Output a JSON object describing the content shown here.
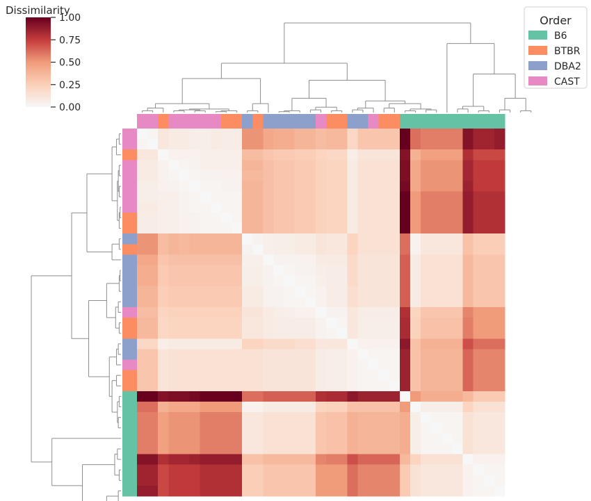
{
  "chart_data": {
    "type": "heatmap",
    "title": "",
    "colorbar": {
      "label": "Dissimilarity",
      "vmin": 0,
      "vmax": 1,
      "ticks": [
        0.0,
        0.25,
        0.5,
        0.75,
        1.0
      ],
      "tick_labels": [
        "0.00",
        "0.25",
        "0.50",
        "0.75",
        "1.00"
      ],
      "colormap": "RdBu_r (upper half: white to dark red)"
    },
    "legend": {
      "title": "Order",
      "position": "top-right",
      "entries": [
        {
          "label": "B6",
          "color": "#66c2a5"
        },
        {
          "label": "BTBR",
          "color": "#fc8d62"
        },
        {
          "label": "DBA2",
          "color": "#8da0cb"
        },
        {
          "label": "CAST",
          "color": "#e78ac3"
        }
      ]
    },
    "strain_colors": {
      "B6": "#66c2a5",
      "BTBR": "#fc8d62",
      "DBA2": "#8da0cb",
      "CAST": "#e78ac3"
    },
    "dendrogram": "hierarchical clustering on both rows and columns",
    "col_order": [
      "CAST",
      "CAST",
      "BTBR",
      "CAST",
      "CAST",
      "CAST",
      "CAST",
      "CAST",
      "BTBR",
      "BTBR",
      "DBA2",
      "BTBR",
      "DBA2",
      "DBA2",
      "DBA2",
      "DBA2",
      "DBA2",
      "CAST",
      "BTBR",
      "BTBR",
      "DBA2",
      "DBA2",
      "CAST",
      "BTBR",
      "BTBR",
      "B6",
      "B6",
      "B6",
      "B6",
      "B6",
      "B6",
      "B6",
      "B6",
      "B6",
      "B6"
    ],
    "row_order": [
      "CAST",
      "CAST",
      "BTBR",
      "CAST",
      "CAST",
      "CAST",
      "CAST",
      "CAST",
      "BTBR",
      "BTBR",
      "DBA2",
      "BTBR",
      "DBA2",
      "DBA2",
      "DBA2",
      "DBA2",
      "DBA2",
      "CAST",
      "BTBR",
      "BTBR",
      "DBA2",
      "DBA2",
      "CAST",
      "BTBR",
      "BTBR",
      "B6",
      "B6",
      "B6",
      "B6",
      "B6",
      "B6",
      "B6",
      "B6",
      "B6",
      "B6"
    ],
    "values": [
      [
        0.0,
        0.02,
        0.1,
        0.08,
        0.08,
        0.06,
        0.06,
        0.08,
        0.07,
        0.07,
        0.52,
        0.52,
        0.44,
        0.42,
        0.42,
        0.38,
        0.38,
        0.34,
        0.36,
        0.36,
        0.2,
        0.3,
        0.3,
        0.3,
        0.3,
        1.0,
        0.62,
        0.58,
        0.58,
        0.58,
        0.58,
        0.92,
        0.85,
        0.85,
        0.88
      ],
      [
        0.02,
        0.0,
        0.1,
        0.08,
        0.08,
        0.06,
        0.06,
        0.08,
        0.07,
        0.07,
        0.52,
        0.52,
        0.44,
        0.42,
        0.42,
        0.38,
        0.38,
        0.34,
        0.36,
        0.36,
        0.2,
        0.3,
        0.3,
        0.3,
        0.3,
        1.0,
        0.62,
        0.58,
        0.58,
        0.58,
        0.58,
        0.92,
        0.85,
        0.85,
        0.88
      ],
      [
        0.1,
        0.1,
        0.0,
        0.04,
        0.04,
        0.04,
        0.05,
        0.05,
        0.05,
        0.05,
        0.34,
        0.34,
        0.3,
        0.28,
        0.28,
        0.26,
        0.26,
        0.22,
        0.2,
        0.2,
        0.06,
        0.12,
        0.12,
        0.12,
        0.12,
        0.92,
        0.4,
        0.48,
        0.48,
        0.48,
        0.48,
        0.8,
        0.72,
        0.72,
        0.72
      ],
      [
        0.08,
        0.08,
        0.04,
        0.0,
        0.02,
        0.03,
        0.05,
        0.05,
        0.05,
        0.05,
        0.38,
        0.38,
        0.33,
        0.3,
        0.3,
        0.28,
        0.28,
        0.24,
        0.22,
        0.22,
        0.08,
        0.14,
        0.14,
        0.14,
        0.14,
        0.94,
        0.44,
        0.52,
        0.52,
        0.52,
        0.52,
        0.84,
        0.76,
        0.76,
        0.76
      ],
      [
        0.08,
        0.08,
        0.04,
        0.02,
        0.0,
        0.02,
        0.03,
        0.03,
        0.04,
        0.04,
        0.36,
        0.36,
        0.33,
        0.3,
        0.3,
        0.28,
        0.28,
        0.24,
        0.22,
        0.22,
        0.08,
        0.14,
        0.14,
        0.14,
        0.14,
        0.94,
        0.44,
        0.52,
        0.52,
        0.52,
        0.52,
        0.84,
        0.76,
        0.76,
        0.76
      ],
      [
        0.06,
        0.06,
        0.04,
        0.03,
        0.02,
        0.0,
        0.02,
        0.02,
        0.03,
        0.03,
        0.38,
        0.38,
        0.33,
        0.3,
        0.3,
        0.28,
        0.28,
        0.24,
        0.22,
        0.22,
        0.08,
        0.14,
        0.14,
        0.14,
        0.14,
        0.96,
        0.44,
        0.52,
        0.52,
        0.52,
        0.52,
        0.86,
        0.76,
        0.76,
        0.76
      ],
      [
        0.06,
        0.06,
        0.05,
        0.05,
        0.03,
        0.02,
        0.0,
        0.02,
        0.02,
        0.02,
        0.38,
        0.38,
        0.33,
        0.3,
        0.3,
        0.28,
        0.28,
        0.24,
        0.22,
        0.22,
        0.08,
        0.14,
        0.14,
        0.14,
        0.14,
        1.0,
        0.5,
        0.58,
        0.58,
        0.58,
        0.58,
        0.88,
        0.8,
        0.8,
        0.8
      ],
      [
        0.08,
        0.08,
        0.05,
        0.05,
        0.03,
        0.02,
        0.02,
        0.0,
        0.02,
        0.02,
        0.38,
        0.38,
        0.33,
        0.3,
        0.3,
        0.28,
        0.28,
        0.24,
        0.22,
        0.22,
        0.08,
        0.14,
        0.14,
        0.14,
        0.14,
        1.0,
        0.5,
        0.58,
        0.58,
        0.58,
        0.58,
        0.88,
        0.8,
        0.8,
        0.8
      ],
      [
        0.07,
        0.07,
        0.05,
        0.05,
        0.04,
        0.03,
        0.02,
        0.02,
        0.0,
        0.02,
        0.38,
        0.38,
        0.33,
        0.3,
        0.3,
        0.28,
        0.28,
        0.24,
        0.22,
        0.22,
        0.08,
        0.14,
        0.14,
        0.14,
        0.14,
        1.0,
        0.5,
        0.58,
        0.58,
        0.58,
        0.58,
        0.88,
        0.8,
        0.8,
        0.8
      ],
      [
        0.07,
        0.07,
        0.05,
        0.05,
        0.04,
        0.03,
        0.02,
        0.02,
        0.02,
        0.0,
        0.38,
        0.38,
        0.33,
        0.3,
        0.3,
        0.28,
        0.28,
        0.24,
        0.22,
        0.22,
        0.08,
        0.14,
        0.14,
        0.14,
        0.14,
        1.0,
        0.5,
        0.58,
        0.58,
        0.58,
        0.58,
        0.88,
        0.8,
        0.8,
        0.8
      ],
      [
        0.52,
        0.52,
        0.34,
        0.38,
        0.36,
        0.38,
        0.38,
        0.38,
        0.38,
        0.38,
        0.0,
        0.03,
        0.05,
        0.06,
        0.06,
        0.08,
        0.08,
        0.12,
        0.1,
        0.1,
        0.22,
        0.14,
        0.14,
        0.14,
        0.14,
        0.62,
        0.04,
        0.1,
        0.1,
        0.1,
        0.1,
        0.32,
        0.26,
        0.26,
        0.26
      ],
      [
        0.52,
        0.52,
        0.34,
        0.38,
        0.36,
        0.38,
        0.38,
        0.38,
        0.38,
        0.38,
        0.03,
        0.0,
        0.05,
        0.06,
        0.06,
        0.08,
        0.08,
        0.12,
        0.1,
        0.1,
        0.22,
        0.14,
        0.14,
        0.14,
        0.14,
        0.62,
        0.04,
        0.1,
        0.1,
        0.1,
        0.1,
        0.32,
        0.26,
        0.26,
        0.26
      ],
      [
        0.44,
        0.44,
        0.3,
        0.33,
        0.33,
        0.33,
        0.33,
        0.33,
        0.33,
        0.33,
        0.05,
        0.05,
        0.0,
        0.03,
        0.03,
        0.04,
        0.04,
        0.08,
        0.08,
        0.08,
        0.18,
        0.12,
        0.12,
        0.12,
        0.12,
        0.66,
        0.08,
        0.14,
        0.14,
        0.14,
        0.14,
        0.36,
        0.3,
        0.3,
        0.3
      ],
      [
        0.42,
        0.42,
        0.28,
        0.3,
        0.3,
        0.3,
        0.3,
        0.3,
        0.3,
        0.3,
        0.06,
        0.06,
        0.03,
        0.0,
        0.02,
        0.03,
        0.03,
        0.06,
        0.07,
        0.07,
        0.18,
        0.12,
        0.12,
        0.12,
        0.12,
        0.66,
        0.08,
        0.14,
        0.14,
        0.14,
        0.14,
        0.36,
        0.3,
        0.3,
        0.3
      ],
      [
        0.42,
        0.42,
        0.28,
        0.3,
        0.3,
        0.3,
        0.3,
        0.3,
        0.3,
        0.3,
        0.06,
        0.06,
        0.03,
        0.02,
        0.0,
        0.02,
        0.02,
        0.05,
        0.07,
        0.07,
        0.18,
        0.12,
        0.12,
        0.12,
        0.12,
        0.66,
        0.08,
        0.14,
        0.14,
        0.14,
        0.14,
        0.36,
        0.3,
        0.3,
        0.3
      ],
      [
        0.38,
        0.38,
        0.26,
        0.28,
        0.28,
        0.28,
        0.28,
        0.28,
        0.28,
        0.28,
        0.08,
        0.08,
        0.04,
        0.03,
        0.02,
        0.0,
        0.02,
        0.04,
        0.07,
        0.07,
        0.16,
        0.12,
        0.12,
        0.12,
        0.12,
        0.66,
        0.08,
        0.14,
        0.14,
        0.14,
        0.14,
        0.36,
        0.3,
        0.3,
        0.3
      ],
      [
        0.38,
        0.38,
        0.26,
        0.28,
        0.28,
        0.28,
        0.28,
        0.28,
        0.28,
        0.28,
        0.08,
        0.08,
        0.04,
        0.03,
        0.02,
        0.02,
        0.0,
        0.04,
        0.07,
        0.07,
        0.16,
        0.12,
        0.12,
        0.12,
        0.12,
        0.66,
        0.08,
        0.14,
        0.14,
        0.14,
        0.14,
        0.36,
        0.3,
        0.3,
        0.3
      ],
      [
        0.34,
        0.34,
        0.22,
        0.24,
        0.24,
        0.24,
        0.24,
        0.24,
        0.24,
        0.24,
        0.12,
        0.12,
        0.08,
        0.06,
        0.05,
        0.04,
        0.04,
        0.0,
        0.03,
        0.03,
        0.1,
        0.07,
        0.07,
        0.07,
        0.07,
        0.8,
        0.22,
        0.3,
        0.3,
        0.3,
        0.3,
        0.56,
        0.5,
        0.5,
        0.5
      ],
      [
        0.36,
        0.36,
        0.2,
        0.22,
        0.22,
        0.22,
        0.22,
        0.22,
        0.22,
        0.22,
        0.1,
        0.1,
        0.08,
        0.07,
        0.07,
        0.07,
        0.07,
        0.03,
        0.0,
        0.02,
        0.1,
        0.06,
        0.06,
        0.06,
        0.06,
        0.82,
        0.24,
        0.32,
        0.32,
        0.32,
        0.32,
        0.58,
        0.5,
        0.5,
        0.5
      ],
      [
        0.36,
        0.36,
        0.2,
        0.22,
        0.22,
        0.22,
        0.22,
        0.22,
        0.22,
        0.22,
        0.1,
        0.1,
        0.08,
        0.07,
        0.07,
        0.07,
        0.07,
        0.03,
        0.02,
        0.0,
        0.1,
        0.06,
        0.06,
        0.06,
        0.06,
        0.82,
        0.24,
        0.32,
        0.32,
        0.32,
        0.32,
        0.58,
        0.5,
        0.5,
        0.5
      ],
      [
        0.2,
        0.2,
        0.06,
        0.08,
        0.08,
        0.08,
        0.08,
        0.08,
        0.08,
        0.08,
        0.22,
        0.22,
        0.18,
        0.18,
        0.18,
        0.16,
        0.16,
        0.1,
        0.1,
        0.1,
        0.0,
        0.04,
        0.04,
        0.04,
        0.04,
        0.9,
        0.32,
        0.4,
        0.4,
        0.4,
        0.4,
        0.7,
        0.62,
        0.62,
        0.62
      ],
      [
        0.3,
        0.3,
        0.12,
        0.14,
        0.14,
        0.14,
        0.14,
        0.14,
        0.14,
        0.14,
        0.14,
        0.14,
        0.12,
        0.12,
        0.12,
        0.12,
        0.12,
        0.07,
        0.06,
        0.06,
        0.04,
        0.0,
        0.02,
        0.02,
        0.02,
        0.86,
        0.32,
        0.38,
        0.38,
        0.38,
        0.38,
        0.64,
        0.56,
        0.56,
        0.56
      ],
      [
        0.3,
        0.3,
        0.12,
        0.14,
        0.14,
        0.14,
        0.14,
        0.14,
        0.14,
        0.14,
        0.14,
        0.14,
        0.12,
        0.12,
        0.12,
        0.12,
        0.12,
        0.07,
        0.06,
        0.06,
        0.04,
        0.02,
        0.0,
        0.02,
        0.02,
        0.86,
        0.32,
        0.38,
        0.38,
        0.38,
        0.38,
        0.64,
        0.56,
        0.56,
        0.56
      ],
      [
        0.3,
        0.3,
        0.12,
        0.14,
        0.14,
        0.14,
        0.14,
        0.14,
        0.14,
        0.14,
        0.14,
        0.14,
        0.12,
        0.12,
        0.12,
        0.12,
        0.12,
        0.07,
        0.06,
        0.06,
        0.04,
        0.02,
        0.02,
        0.0,
        0.02,
        0.86,
        0.32,
        0.38,
        0.38,
        0.38,
        0.38,
        0.64,
        0.56,
        0.56,
        0.56
      ],
      [
        0.3,
        0.3,
        0.12,
        0.14,
        0.14,
        0.14,
        0.14,
        0.14,
        0.14,
        0.14,
        0.14,
        0.14,
        0.12,
        0.12,
        0.12,
        0.12,
        0.12,
        0.07,
        0.06,
        0.06,
        0.04,
        0.02,
        0.02,
        0.02,
        0.0,
        0.86,
        0.32,
        0.38,
        0.38,
        0.38,
        0.38,
        0.64,
        0.56,
        0.56,
        0.56
      ],
      [
        1.0,
        1.0,
        0.92,
        0.94,
        0.94,
        0.96,
        1.0,
        1.0,
        1.0,
        1.0,
        0.62,
        0.62,
        0.66,
        0.66,
        0.66,
        0.66,
        0.66,
        0.8,
        0.82,
        0.82,
        0.9,
        0.86,
        0.86,
        0.86,
        0.86,
        0.0,
        0.5,
        0.42,
        0.42,
        0.42,
        0.42,
        0.36,
        0.28,
        0.28,
        0.28
      ],
      [
        0.62,
        0.62,
        0.4,
        0.44,
        0.44,
        0.44,
        0.5,
        0.5,
        0.5,
        0.5,
        0.04,
        0.04,
        0.08,
        0.08,
        0.08,
        0.08,
        0.08,
        0.22,
        0.24,
        0.24,
        0.32,
        0.32,
        0.32,
        0.32,
        0.32,
        0.5,
        0.0,
        0.06,
        0.06,
        0.06,
        0.06,
        0.22,
        0.14,
        0.14,
        0.14
      ],
      [
        0.58,
        0.58,
        0.48,
        0.52,
        0.52,
        0.52,
        0.58,
        0.58,
        0.58,
        0.58,
        0.1,
        0.1,
        0.14,
        0.14,
        0.14,
        0.14,
        0.14,
        0.3,
        0.32,
        0.32,
        0.4,
        0.38,
        0.38,
        0.38,
        0.38,
        0.42,
        0.06,
        0.0,
        0.02,
        0.02,
        0.02,
        0.14,
        0.1,
        0.1,
        0.1
      ],
      [
        0.58,
        0.58,
        0.48,
        0.52,
        0.52,
        0.52,
        0.58,
        0.58,
        0.58,
        0.58,
        0.1,
        0.1,
        0.14,
        0.14,
        0.14,
        0.14,
        0.14,
        0.3,
        0.32,
        0.32,
        0.4,
        0.38,
        0.38,
        0.38,
        0.38,
        0.42,
        0.06,
        0.02,
        0.0,
        0.02,
        0.02,
        0.14,
        0.1,
        0.1,
        0.1
      ],
      [
        0.58,
        0.58,
        0.48,
        0.52,
        0.52,
        0.52,
        0.58,
        0.58,
        0.58,
        0.58,
        0.1,
        0.1,
        0.14,
        0.14,
        0.14,
        0.14,
        0.14,
        0.3,
        0.32,
        0.32,
        0.4,
        0.38,
        0.38,
        0.38,
        0.38,
        0.42,
        0.06,
        0.02,
        0.02,
        0.0,
        0.02,
        0.14,
        0.1,
        0.1,
        0.1
      ],
      [
        0.58,
        0.58,
        0.48,
        0.52,
        0.52,
        0.52,
        0.58,
        0.58,
        0.58,
        0.58,
        0.1,
        0.1,
        0.14,
        0.14,
        0.14,
        0.14,
        0.14,
        0.3,
        0.32,
        0.32,
        0.4,
        0.38,
        0.38,
        0.38,
        0.38,
        0.42,
        0.06,
        0.02,
        0.02,
        0.02,
        0.0,
        0.14,
        0.1,
        0.1,
        0.1
      ],
      [
        0.92,
        0.92,
        0.8,
        0.84,
        0.84,
        0.86,
        0.88,
        0.88,
        0.88,
        0.88,
        0.32,
        0.32,
        0.36,
        0.36,
        0.36,
        0.36,
        0.36,
        0.56,
        0.58,
        0.58,
        0.7,
        0.64,
        0.64,
        0.64,
        0.64,
        0.36,
        0.22,
        0.14,
        0.14,
        0.14,
        0.14,
        0.0,
        0.04,
        0.04,
        0.04
      ],
      [
        0.85,
        0.85,
        0.72,
        0.76,
        0.76,
        0.76,
        0.8,
        0.8,
        0.8,
        0.8,
        0.26,
        0.26,
        0.3,
        0.3,
        0.3,
        0.3,
        0.3,
        0.5,
        0.5,
        0.5,
        0.62,
        0.56,
        0.56,
        0.56,
        0.56,
        0.28,
        0.14,
        0.1,
        0.1,
        0.1,
        0.1,
        0.04,
        0.0,
        0.02,
        0.02
      ],
      [
        0.85,
        0.85,
        0.72,
        0.76,
        0.76,
        0.76,
        0.8,
        0.8,
        0.8,
        0.8,
        0.26,
        0.26,
        0.3,
        0.3,
        0.3,
        0.3,
        0.3,
        0.5,
        0.5,
        0.5,
        0.62,
        0.56,
        0.56,
        0.56,
        0.56,
        0.28,
        0.14,
        0.1,
        0.1,
        0.1,
        0.1,
        0.04,
        0.02,
        0.0,
        0.02
      ],
      [
        0.88,
        0.88,
        0.72,
        0.76,
        0.76,
        0.76,
        0.8,
        0.8,
        0.8,
        0.8,
        0.26,
        0.26,
        0.3,
        0.3,
        0.3,
        0.3,
        0.3,
        0.5,
        0.5,
        0.5,
        0.62,
        0.56,
        0.56,
        0.56,
        0.56,
        0.28,
        0.14,
        0.1,
        0.1,
        0.1,
        0.1,
        0.04,
        0.02,
        0.02,
        0.0
      ]
    ]
  }
}
